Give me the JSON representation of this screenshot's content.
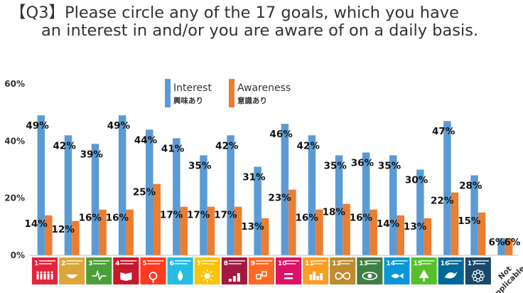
{
  "title_line1": "【Q3】Please circle any of the 17 goals, which you have",
  "title_line2": "an interest in and/or you are aware of on a daily basis.",
  "chart_data": {
    "type": "bar",
    "ylim": [
      0,
      60
    ],
    "yticks": [
      "0%",
      "20%",
      "40%",
      "60%"
    ],
    "grid": false,
    "legend_placement": "top-center",
    "categories": [
      "1 NO POVERTY",
      "2 ZERO HUNGER",
      "3 GOOD HEALTH AND WELL-BEING",
      "4 QUALITY EDUCATION",
      "5 GENDER EQUALITY",
      "6 CLEAN WATER AND SANITATION",
      "7 AFFORDABLE AND CLEAN ENERGY",
      "8 DECENT WORK AND ECONOMIC GROWTH",
      "9 INDUSTRY, INNOVATION AND INFRASTRUCTURE",
      "10 REDUCED INEQUALITIES",
      "11 SUSTAINABLE CITIES AND COMMUNITIES",
      "12 RESPONSIBLE CONSUMPTION AND PRODUCTION",
      "13 CLIMATE ACTION",
      "14 LIFE BELOW WATER",
      "15 LIFE ON LAND",
      "16 PEACE, JUSTICE AND STRONG INSTITUTIONS",
      "17 PARTNERSHIPS FOR THE GOALS",
      "Not Applicable"
    ],
    "series": [
      {
        "name": "Interest",
        "name_jp": "興味あり",
        "color": "#5b9bd5",
        "values": [
          49,
          42,
          39,
          49,
          44,
          41,
          35,
          42,
          31,
          46,
          42,
          35,
          36,
          35,
          30,
          47,
          28,
          6
        ],
        "labels": [
          "49%",
          "42%",
          "39%",
          "49%",
          "44%",
          "41%",
          "35%",
          "42%",
          "31%",
          "46%",
          "42%",
          "35%",
          "36%",
          "35%",
          "30%",
          "47%",
          "28%",
          "6%"
        ]
      },
      {
        "name": "Awareness",
        "name_jp": "意識あり",
        "color": "#ed7d31",
        "values": [
          14,
          12,
          16,
          16,
          25,
          17,
          17,
          17,
          13,
          23,
          16,
          18,
          16,
          14,
          13,
          22,
          15,
          6
        ],
        "labels": [
          "14%",
          "12%",
          "16%",
          "16%",
          "25%",
          "17%",
          "17%",
          "17%",
          "13%",
          "23%",
          "16%",
          "18%",
          "16%",
          "14%",
          "13%",
          "22%",
          "15%",
          "6%"
        ]
      }
    ],
    "goal_colors": [
      "#e5243b",
      "#dda63a",
      "#4c9f38",
      "#c5192d",
      "#ff3a21",
      "#26bde2",
      "#fcc30b",
      "#a21942",
      "#fd6925",
      "#dd1367",
      "#fd9d24",
      "#bf8b2e",
      "#3f7e44",
      "#0a97d9",
      "#56c02b",
      "#00689d",
      "#19486a"
    ],
    "goal_numbers": [
      "1",
      "2",
      "3",
      "4",
      "5",
      "6",
      "7",
      "8",
      "9",
      "10",
      "11",
      "12",
      "13",
      "14",
      "15",
      "16",
      "17"
    ],
    "goal_icons": [
      "people-icon",
      "bowl-icon",
      "heartbeat-icon",
      "book-icon",
      "gender-icon",
      "water-drop-icon",
      "sun-icon",
      "growth-chart-icon",
      "cubes-icon",
      "equality-icon",
      "city-icon",
      "infinity-icon",
      "eye-globe-icon",
      "fish-icon",
      "tree-icon",
      "dove-icon",
      "rings-icon"
    ]
  }
}
